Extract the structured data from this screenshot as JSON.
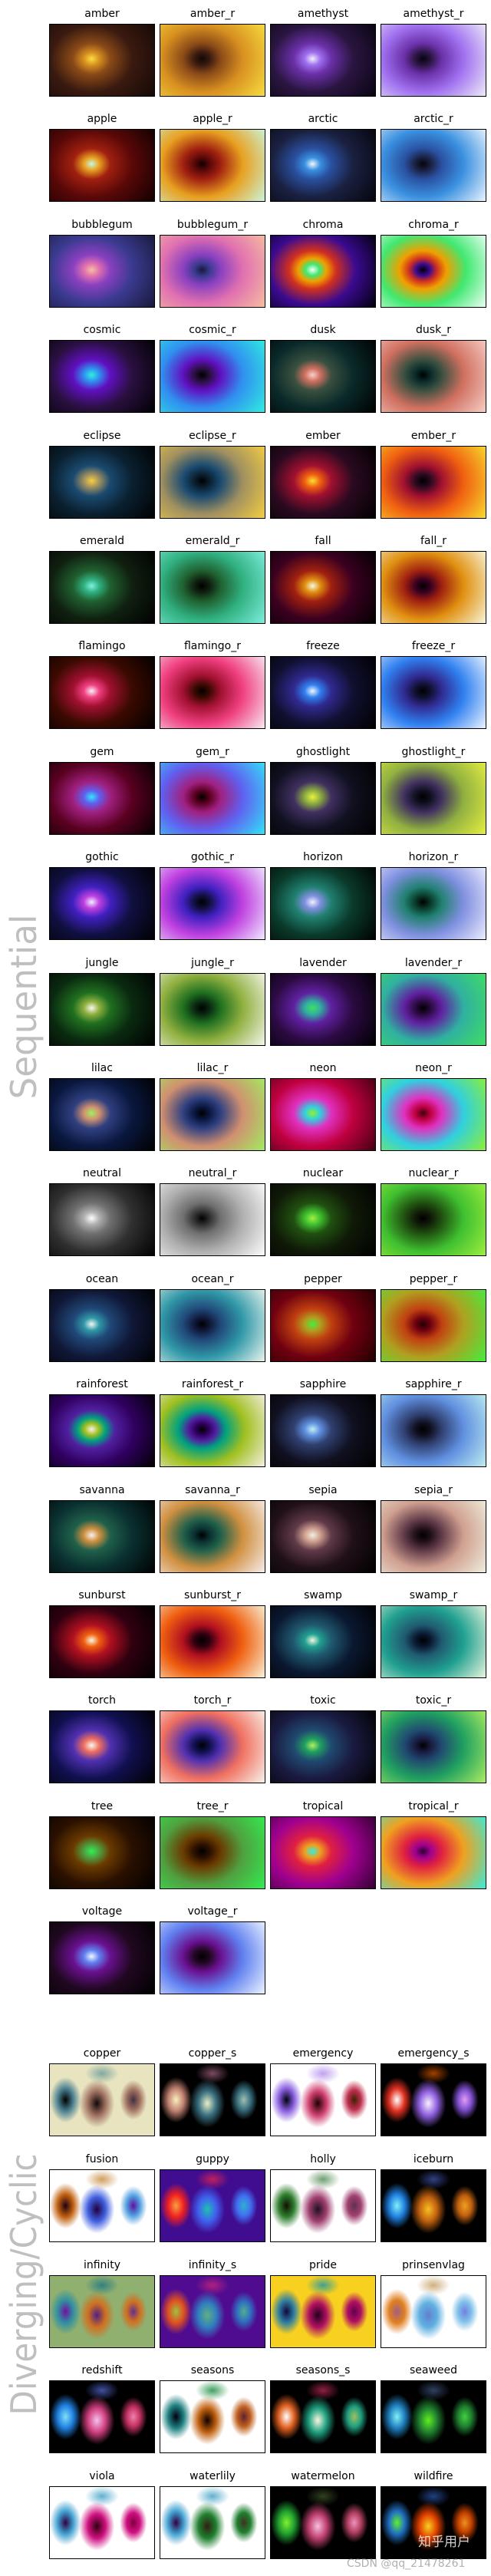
{
  "sequential": {
    "label": "Sequential",
    "cmaps": {
      "amber": [
        "#140806",
        "#3a1a10",
        "#8a4a18",
        "#d89020",
        "#f8e040"
      ],
      "amethyst": [
        "#080410",
        "#2a1540",
        "#6a30a8",
        "#a070f0",
        "#f0f0f8"
      ],
      "apple": [
        "#100000",
        "#5a0808",
        "#a02010",
        "#e8a020",
        "#c8f8e0"
      ],
      "arctic": [
        "#05050c",
        "#1a2040",
        "#2a50a0",
        "#3a90e0",
        "#f0f8ff"
      ],
      "bubblegum": [
        "#181838",
        "#3a3a90",
        "#8a40c0",
        "#e070b0",
        "#f8c0a0"
      ],
      "chroma": [
        "#000008",
        "#3a0a90",
        "#d03020",
        "#f0a000",
        "#40e870",
        "#f0fff8"
      ],
      "cosmic": [
        "#000000",
        "#2a1040",
        "#6010c0",
        "#3090f0",
        "#30f0e0"
      ],
      "dusk": [
        "#000000",
        "#0a2a2a",
        "#3a5040",
        "#d07060",
        "#f8d0c8"
      ],
      "eclipse": [
        "#000000",
        "#0a2030",
        "#1a4a70",
        "#a09060",
        "#f8d040"
      ],
      "ember": [
        "#000000",
        "#2a0a20",
        "#a01030",
        "#f06010",
        "#f8e030"
      ],
      "emerald": [
        "#000000",
        "#102010",
        "#206030",
        "#30b080",
        "#80f0e0"
      ],
      "fall": [
        "#000000",
        "#3a0020",
        "#a02010",
        "#e09010",
        "#f8f8e0"
      ],
      "flamingo": [
        "#000000",
        "#3a0a00",
        "#a01030",
        "#f04080",
        "#f8f0f8"
      ],
      "freeze": [
        "#000000",
        "#101030",
        "#302a90",
        "#3080f0",
        "#f0f8ff"
      ],
      "gem": [
        "#000000",
        "#5a0020",
        "#a02080",
        "#6060f0",
        "#30e8f8"
      ],
      "ghostlight": [
        "#000000",
        "#101020",
        "#403060",
        "#90b040",
        "#e8f040"
      ],
      "gothic": [
        "#000000",
        "#101040",
        "#4020c0",
        "#c040e0",
        "#f0f0ff"
      ],
      "horizon": [
        "#000000",
        "#0a3a2a",
        "#208070",
        "#8090e0",
        "#f0f0ff"
      ],
      "jungle": [
        "#000000",
        "#0a2a10",
        "#207020",
        "#90b040",
        "#f8f8f0"
      ],
      "lavender": [
        "#000000",
        "#2a0a40",
        "#6020a0",
        "#30b0a0",
        "#40e060"
      ],
      "lilac": [
        "#000000",
        "#0a1840",
        "#304080",
        "#d09070",
        "#a0f060"
      ],
      "neon": [
        "#400010",
        "#c00040",
        "#e030c0",
        "#30d0e0",
        "#90f030"
      ],
      "neutral": [
        "#000000",
        "#303030",
        "#707070",
        "#b0b0b0",
        "#ffffff"
      ],
      "nuclear": [
        "#000000",
        "#101a08",
        "#205010",
        "#40c030",
        "#a0f040"
      ],
      "ocean": [
        "#000000",
        "#101838",
        "#204878",
        "#3098a8",
        "#f0f8f0"
      ],
      "pepper": [
        "#200000",
        "#700010",
        "#c04010",
        "#b0a020",
        "#40f040"
      ],
      "rainforest": [
        "#000000",
        "#300060",
        "#5020a0",
        "#00a080",
        "#a0c020",
        "#f8f0e8"
      ],
      "sapphire": [
        "#000000",
        "#101020",
        "#304070",
        "#6090e0",
        "#c0f0f0"
      ],
      "savanna": [
        "#000000",
        "#0a3030",
        "#20604a",
        "#d09040",
        "#f8f0f0"
      ],
      "sepia": [
        "#000000",
        "#201018",
        "#603a48",
        "#d0a090",
        "#f0f0e0"
      ],
      "sunburst": [
        "#000000",
        "#300010",
        "#b01020",
        "#f06010",
        "#f8f8e0"
      ],
      "swamp": [
        "#000000",
        "#0a1830",
        "#205a70",
        "#20a090",
        "#f0f8e0"
      ],
      "torch": [
        "#000000",
        "#101050",
        "#5030b0",
        "#f07060",
        "#f8f8f0"
      ],
      "toxic": [
        "#000000",
        "#1a1a40",
        "#204a70",
        "#20a060",
        "#b0f060"
      ],
      "tree": [
        "#000000",
        "#2a1000",
        "#6a3a00",
        "#50a040",
        "#30f050"
      ],
      "tropical": [
        "#300030",
        "#a00090",
        "#e02040",
        "#f0a020",
        "#30f0e0"
      ],
      "voltage": [
        "#000000",
        "#200820",
        "#6a1090",
        "#6080f0",
        "#f0f8ff"
      ]
    },
    "panels": [
      {
        "name": "amber",
        "cmap": "amber",
        "reversed": false
      },
      {
        "name": "amber_r",
        "cmap": "amber",
        "reversed": true
      },
      {
        "name": "amethyst",
        "cmap": "amethyst",
        "reversed": false
      },
      {
        "name": "amethyst_r",
        "cmap": "amethyst",
        "reversed": true
      },
      {
        "name": "apple",
        "cmap": "apple",
        "reversed": false
      },
      {
        "name": "apple_r",
        "cmap": "apple",
        "reversed": true
      },
      {
        "name": "arctic",
        "cmap": "arctic",
        "reversed": false
      },
      {
        "name": "arctic_r",
        "cmap": "arctic",
        "reversed": true
      },
      {
        "name": "bubblegum",
        "cmap": "bubblegum",
        "reversed": false
      },
      {
        "name": "bubblegum_r",
        "cmap": "bubblegum",
        "reversed": true
      },
      {
        "name": "chroma",
        "cmap": "chroma",
        "reversed": false
      },
      {
        "name": "chroma_r",
        "cmap": "chroma",
        "reversed": true
      },
      {
        "name": "cosmic",
        "cmap": "cosmic",
        "reversed": false
      },
      {
        "name": "cosmic_r",
        "cmap": "cosmic",
        "reversed": true
      },
      {
        "name": "dusk",
        "cmap": "dusk",
        "reversed": false
      },
      {
        "name": "dusk_r",
        "cmap": "dusk",
        "reversed": true
      },
      {
        "name": "eclipse",
        "cmap": "eclipse",
        "reversed": false
      },
      {
        "name": "eclipse_r",
        "cmap": "eclipse",
        "reversed": true
      },
      {
        "name": "ember",
        "cmap": "ember",
        "reversed": false
      },
      {
        "name": "ember_r",
        "cmap": "ember",
        "reversed": true
      },
      {
        "name": "emerald",
        "cmap": "emerald",
        "reversed": false
      },
      {
        "name": "emerald_r",
        "cmap": "emerald",
        "reversed": true
      },
      {
        "name": "fall",
        "cmap": "fall",
        "reversed": false
      },
      {
        "name": "fall_r",
        "cmap": "fall",
        "reversed": true
      },
      {
        "name": "flamingo",
        "cmap": "flamingo",
        "reversed": false
      },
      {
        "name": "flamingo_r",
        "cmap": "flamingo",
        "reversed": true
      },
      {
        "name": "freeze",
        "cmap": "freeze",
        "reversed": false
      },
      {
        "name": "freeze_r",
        "cmap": "freeze",
        "reversed": true
      },
      {
        "name": "gem",
        "cmap": "gem",
        "reversed": false
      },
      {
        "name": "gem_r",
        "cmap": "gem",
        "reversed": true
      },
      {
        "name": "ghostlight",
        "cmap": "ghostlight",
        "reversed": false
      },
      {
        "name": "ghostlight_r",
        "cmap": "ghostlight",
        "reversed": true
      },
      {
        "name": "gothic",
        "cmap": "gothic",
        "reversed": false
      },
      {
        "name": "gothic_r",
        "cmap": "gothic",
        "reversed": true
      },
      {
        "name": "horizon",
        "cmap": "horizon",
        "reversed": false
      },
      {
        "name": "horizon_r",
        "cmap": "horizon",
        "reversed": true
      },
      {
        "name": "jungle",
        "cmap": "jungle",
        "reversed": false
      },
      {
        "name": "jungle_r",
        "cmap": "jungle",
        "reversed": true
      },
      {
        "name": "lavender",
        "cmap": "lavender",
        "reversed": false
      },
      {
        "name": "lavender_r",
        "cmap": "lavender",
        "reversed": true
      },
      {
        "name": "lilac",
        "cmap": "lilac",
        "reversed": false
      },
      {
        "name": "lilac_r",
        "cmap": "lilac",
        "reversed": true
      },
      {
        "name": "neon",
        "cmap": "neon",
        "reversed": false
      },
      {
        "name": "neon_r",
        "cmap": "neon",
        "reversed": true
      },
      {
        "name": "neutral",
        "cmap": "neutral",
        "reversed": false
      },
      {
        "name": "neutral_r",
        "cmap": "neutral",
        "reversed": true
      },
      {
        "name": "nuclear",
        "cmap": "nuclear",
        "reversed": false
      },
      {
        "name": "nuclear_r",
        "cmap": "nuclear",
        "reversed": true
      },
      {
        "name": "ocean",
        "cmap": "ocean",
        "reversed": false
      },
      {
        "name": "ocean_r",
        "cmap": "ocean",
        "reversed": true
      },
      {
        "name": "pepper",
        "cmap": "pepper",
        "reversed": false
      },
      {
        "name": "pepper_r",
        "cmap": "pepper",
        "reversed": true
      },
      {
        "name": "rainforest",
        "cmap": "rainforest",
        "reversed": false
      },
      {
        "name": "rainforest_r",
        "cmap": "rainforest",
        "reversed": true
      },
      {
        "name": "sapphire",
        "cmap": "sapphire",
        "reversed": false
      },
      {
        "name": "sapphire_r",
        "cmap": "sapphire",
        "reversed": true
      },
      {
        "name": "savanna",
        "cmap": "savanna",
        "reversed": false
      },
      {
        "name": "savanna_r",
        "cmap": "savanna",
        "reversed": true
      },
      {
        "name": "sepia",
        "cmap": "sepia",
        "reversed": false
      },
      {
        "name": "sepia_r",
        "cmap": "sepia",
        "reversed": true
      },
      {
        "name": "sunburst",
        "cmap": "sunburst",
        "reversed": false
      },
      {
        "name": "sunburst_r",
        "cmap": "sunburst",
        "reversed": true
      },
      {
        "name": "swamp",
        "cmap": "swamp",
        "reversed": false
      },
      {
        "name": "swamp_r",
        "cmap": "swamp",
        "reversed": true
      },
      {
        "name": "torch",
        "cmap": "torch",
        "reversed": false
      },
      {
        "name": "torch_r",
        "cmap": "torch",
        "reversed": true
      },
      {
        "name": "toxic",
        "cmap": "toxic",
        "reversed": false
      },
      {
        "name": "toxic_r",
        "cmap": "toxic",
        "reversed": true
      },
      {
        "name": "tree",
        "cmap": "tree",
        "reversed": false
      },
      {
        "name": "tree_r",
        "cmap": "tree",
        "reversed": true
      },
      {
        "name": "tropical",
        "cmap": "tropical",
        "reversed": false
      },
      {
        "name": "tropical_r",
        "cmap": "tropical",
        "reversed": true
      },
      {
        "name": "voltage",
        "cmap": "voltage",
        "reversed": false
      },
      {
        "name": "voltage_r",
        "cmap": "voltage",
        "reversed": true
      }
    ]
  },
  "diverging": {
    "label": "Diverging/Cyclic",
    "panels": [
      {
        "name": "copper",
        "bg": "#e8e4c0",
        "top": "#80a8a0",
        "a": [
          "#000000",
          "#4a8090"
        ],
        "b": [
          "#100808",
          "#a07060"
        ],
        "c": [
          "#403040",
          "#a07060"
        ]
      },
      {
        "name": "copper_s",
        "bg": "#000000",
        "top": "#7a4a60",
        "a": [
          "#f8f0c0",
          "#c08070"
        ],
        "b": [
          "#e8f0c8",
          "#3a7080"
        ],
        "c": [
          "#a0c0b0",
          "#3a7080"
        ]
      },
      {
        "name": "emergency",
        "bg": "#ffffff",
        "top": "#c0a0f0",
        "a": [
          "#000010",
          "#8a60e0"
        ],
        "b": [
          "#200000",
          "#d04070"
        ],
        "c": [
          "#402000",
          "#c03050"
        ]
      },
      {
        "name": "emergency_s",
        "bg": "#000000",
        "top": "#a04000",
        "a": [
          "#ffffff",
          "#e03020"
        ],
        "b": [
          "#f8f0ff",
          "#9060e0"
        ],
        "c": [
          "#e0a0f0",
          "#8050d0"
        ]
      },
      {
        "name": "fusion",
        "bg": "#ffffff",
        "top": "#d0a060",
        "a": [
          "#200010",
          "#c06010"
        ],
        "b": [
          "#200040",
          "#4060e0"
        ],
        "c": [
          "#6010a0",
          "#50a0e0"
        ]
      },
      {
        "name": "guppy",
        "bg": "#400c90",
        "top": "#c02060",
        "a": [
          "#f8a040",
          "#f02020"
        ],
        "b": [
          "#20c0b0",
          "#4060f0"
        ],
        "c": [
          "#30b0d0",
          "#4070f0"
        ]
      },
      {
        "name": "holly",
        "bg": "#ffffff",
        "top": "#70a070",
        "a": [
          "#101000",
          "#308030"
        ],
        "b": [
          "#201020",
          "#a04070"
        ],
        "c": [
          "#603050",
          "#a04070"
        ]
      },
      {
        "name": "iceburn",
        "bg": "#000000",
        "top": "#304080",
        "a": [
          "#80f0f8",
          "#2080e0"
        ],
        "b": [
          "#f8c020",
          "#c06010"
        ],
        "c": [
          "#f0a020",
          "#c06010"
        ]
      },
      {
        "name": "infinity",
        "bg": "#90b070",
        "top": "#308080",
        "a": [
          "#7010a0",
          "#3090a0"
        ],
        "b": [
          "#502080",
          "#d07020"
        ],
        "c": [
          "#603090",
          "#d07020"
        ]
      },
      {
        "name": "infinity_s",
        "bg": "#500c90",
        "top": "#b02080",
        "a": [
          "#a0c040",
          "#e05020"
        ],
        "b": [
          "#60b080",
          "#3080c0"
        ],
        "c": [
          "#50b090",
          "#3070c0"
        ]
      },
      {
        "name": "pride",
        "bg": "#f8d020",
        "top": "#40a090",
        "a": [
          "#100840",
          "#3080a0"
        ],
        "b": [
          "#200020",
          "#b01060"
        ],
        "c": [
          "#600050",
          "#b01060"
        ]
      },
      {
        "name": "prinsenvlag",
        "bg": "#ffffff",
        "top": "#d0b080",
        "a": [
          "#a06080",
          "#e08020"
        ],
        "b": [
          "#6080d0",
          "#60b0e0"
        ],
        "c": [
          "#7080e0",
          "#80c0e8"
        ]
      },
      {
        "name": "redshift",
        "bg": "#000000",
        "top": "#4050a0",
        "a": [
          "#80e0f8",
          "#2080e0"
        ],
        "b": [
          "#f8c0f0",
          "#d04080"
        ],
        "c": [
          "#f080b0",
          "#c03060"
        ]
      },
      {
        "name": "seasons",
        "bg": "#ffffff",
        "top": "#40a060",
        "a": [
          "#000010",
          "#208080"
        ],
        "b": [
          "#100000",
          "#c06010"
        ],
        "c": [
          "#602030",
          "#c06020"
        ]
      },
      {
        "name": "seasons_s",
        "bg": "#000000",
        "top": "#902040",
        "a": [
          "#ffffff",
          "#e06020"
        ],
        "b": [
          "#f8f8e0",
          "#20a080"
        ],
        "c": [
          "#a0c060",
          "#20a080"
        ]
      },
      {
        "name": "seaweed",
        "bg": "#000000",
        "top": "#304060",
        "a": [
          "#80f0f8",
          "#2080c0"
        ],
        "b": [
          "#60f020",
          "#208030"
        ],
        "c": [
          "#40d040",
          "#208030"
        ]
      },
      {
        "name": "viola",
        "bg": "#ffffff",
        "top": "#60b0d0",
        "a": [
          "#300040",
          "#40a0d0"
        ],
        "b": [
          "#300010",
          "#d01080"
        ],
        "c": [
          "#800040",
          "#d01080"
        ]
      },
      {
        "name": "waterlily",
        "bg": "#ffffff",
        "top": "#60b0d0",
        "a": [
          "#300040",
          "#40a0d0"
        ],
        "b": [
          "#302010",
          "#208030"
        ],
        "c": [
          "#403020",
          "#208030"
        ]
      },
      {
        "name": "watermelon",
        "bg": "#000000",
        "top": "#304020",
        "a": [
          "#80f030",
          "#20a030"
        ],
        "b": [
          "#f8c0e0",
          "#c04070"
        ],
        "c": [
          "#f090c0",
          "#b04060"
        ]
      },
      {
        "name": "wildfire",
        "bg": "#000000",
        "top": "#204080",
        "a": [
          "#60f030",
          "#2070c0"
        ],
        "b": [
          "#f8d020",
          "#e04000"
        ],
        "c": [
          "#f09020",
          "#c04000"
        ]
      }
    ]
  },
  "label_color": "#bfbfbf",
  "watermark": {
    "text": "CSDN @qq_21478261",
    "overlay": "知乎用户"
  }
}
